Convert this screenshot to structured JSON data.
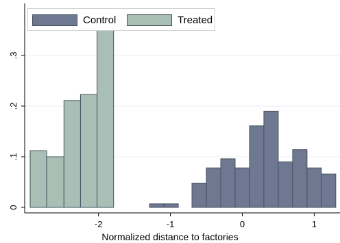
{
  "chart_data": {
    "type": "bar",
    "title": "",
    "xlabel": "Normalized distance to factories",
    "ylabel": "",
    "xlim": [
      -2.95,
      1.33
    ],
    "ylim": [
      0,
      0.35
    ],
    "xticks": [
      {
        "value": -2,
        "label": "-2"
      },
      {
        "value": -1,
        "label": "-1"
      },
      {
        "value": 0,
        "label": "0"
      },
      {
        "value": 1,
        "label": "1"
      }
    ],
    "yticks": [
      {
        "value": 0,
        "label": "0"
      },
      {
        "value": 0.1,
        "label": ".1"
      },
      {
        "value": 0.2,
        "label": ".2"
      },
      {
        "value": 0.3,
        "label": ".3"
      }
    ],
    "grid": true,
    "legend_position": "top-left",
    "series": [
      {
        "name": "Control",
        "color": "#6e7891",
        "bins": [
          {
            "x0": -1.29,
            "x1": -1.09,
            "y": 0.007
          },
          {
            "x0": -1.09,
            "x1": -0.89,
            "y": 0.007
          },
          {
            "x0": -0.7,
            "x1": -0.5,
            "y": 0.048
          },
          {
            "x0": -0.5,
            "x1": -0.3,
            "y": 0.078
          },
          {
            "x0": -0.3,
            "x1": -0.1,
            "y": 0.096
          },
          {
            "x0": -0.1,
            "x1": 0.1,
            "y": 0.078
          },
          {
            "x0": 0.1,
            "x1": 0.3,
            "y": 0.161
          },
          {
            "x0": 0.3,
            "x1": 0.5,
            "y": 0.19
          },
          {
            "x0": 0.5,
            "x1": 0.7,
            "y": 0.09
          },
          {
            "x0": 0.7,
            "x1": 0.9,
            "y": 0.114
          },
          {
            "x0": 0.9,
            "x1": 1.1,
            "y": 0.078
          },
          {
            "x0": 1.1,
            "x1": 1.3,
            "y": 0.066
          }
        ]
      },
      {
        "name": "Treated",
        "color": "#a9bfb6",
        "bins": [
          {
            "x0": -2.95,
            "x1": -2.72,
            "y": 0.112
          },
          {
            "x0": -2.72,
            "x1": -2.48,
            "y": 0.1
          },
          {
            "x0": -2.48,
            "x1": -2.25,
            "y": 0.211
          },
          {
            "x0": -2.25,
            "x1": -2.02,
            "y": 0.223
          },
          {
            "x0": -2.02,
            "x1": -1.79,
            "y": 0.35
          }
        ]
      }
    ]
  }
}
